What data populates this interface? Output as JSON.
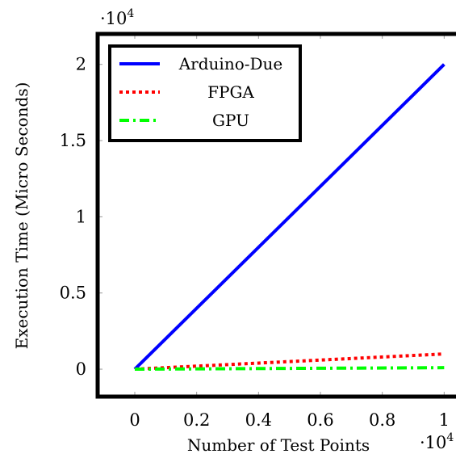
{
  "chart_data": {
    "type": "line",
    "xlabel": "Number of Test Points",
    "ylabel": "Execution Time (Micro Seconds)",
    "x_multiplier": "·10",
    "x_multiplier_exp": "4",
    "y_multiplier": "·10",
    "y_multiplier_exp": "4",
    "xlim": [
      -0.12,
      1.08
    ],
    "ylim": [
      -0.18,
      2.2
    ],
    "x_ticks": [
      0,
      0.2,
      0.4,
      0.6,
      0.8,
      1
    ],
    "x_tick_labels": [
      "0",
      "0.2",
      "0.4",
      "0.6",
      "0.8",
      "1"
    ],
    "y_ticks": [
      0,
      0.5,
      1,
      1.5,
      2
    ],
    "y_tick_labels": [
      "0",
      "0.5",
      "1",
      "1.5",
      "2"
    ],
    "grid": false,
    "legend_position": "top-left",
    "series": [
      {
        "name": "Arduino-Due",
        "color": "#0000ff",
        "style": "solid",
        "x": [
          0,
          1
        ],
        "y": [
          0,
          2.0
        ]
      },
      {
        "name": "FPGA",
        "color": "#ff0000",
        "style": "dotted",
        "x": [
          0,
          1
        ],
        "y": [
          0,
          0.1
        ]
      },
      {
        "name": "GPU",
        "color": "#00ff00",
        "style": "dashdot",
        "x": [
          0,
          1
        ],
        "y": [
          0,
          0.01
        ]
      }
    ]
  }
}
